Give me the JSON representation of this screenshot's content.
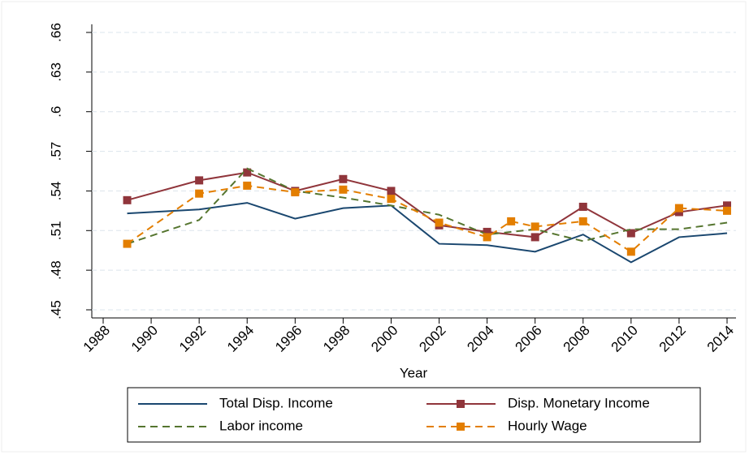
{
  "chart_data": {
    "type": "line",
    "x_label": "Year",
    "xlim": [
      1988,
      2014
    ],
    "xticks": [
      1988,
      1990,
      1992,
      1994,
      1996,
      1998,
      2000,
      2002,
      2004,
      2006,
      2008,
      2010,
      2012,
      2014
    ],
    "ylim": [
      0.45,
      0.66
    ],
    "yticks": [
      {
        "value": 0.45,
        "label": ".45"
      },
      {
        "value": 0.48,
        "label": ".48"
      },
      {
        "value": 0.51,
        "label": ".51"
      },
      {
        "value": 0.54,
        "label": ".54"
      },
      {
        "value": 0.57,
        "label": ".57"
      },
      {
        "value": 0.6,
        "label": ".6"
      },
      {
        "value": 0.63,
        "label": ".63"
      },
      {
        "value": 0.66,
        "label": ".66"
      }
    ],
    "grid": true,
    "legend": "bottom",
    "series": [
      {
        "name": "Total Disp. Income",
        "color": "#1a476f",
        "dash": "solid",
        "marker": "none",
        "x": [
          1989,
          1992,
          1994,
          1996,
          1998,
          2000,
          2002,
          2004,
          2006,
          2008,
          2010,
          2012,
          2014
        ],
        "values": [
          0.523,
          0.526,
          0.531,
          0.519,
          0.527,
          0.529,
          0.5,
          0.499,
          0.494,
          0.507,
          0.486,
          0.505,
          0.508
        ]
      },
      {
        "name": "Disp. Monetary Income",
        "color": "#90353b",
        "dash": "solid",
        "marker": "square",
        "x": [
          1989,
          1992,
          1994,
          1996,
          1998,
          2000,
          2002,
          2004,
          2006,
          2008,
          2010,
          2012,
          2014
        ],
        "values": [
          0.533,
          0.548,
          0.554,
          0.54,
          0.549,
          0.54,
          0.514,
          0.509,
          0.505,
          0.528,
          0.508,
          0.524,
          0.529
        ]
      },
      {
        "name": "Labor income",
        "color": "#55752f",
        "dash": "dashed",
        "marker": "none",
        "x": [
          1989,
          1992,
          1994,
          1996,
          1998,
          2000,
          2002,
          2004,
          2006,
          2008,
          2010,
          2012,
          2014
        ],
        "values": [
          0.5,
          0.518,
          0.557,
          0.54,
          0.535,
          0.529,
          0.522,
          0.507,
          0.511,
          0.502,
          0.511,
          0.511,
          0.516
        ]
      },
      {
        "name": "Hourly Wage",
        "color": "#e37e00",
        "dash": "dashed",
        "marker": "square",
        "x": [
          1989,
          1992,
          1994,
          1996,
          1998,
          2000,
          2002,
          2004,
          2005,
          2006,
          2008,
          2010,
          2012,
          2014
        ],
        "values": [
          0.5,
          0.538,
          0.544,
          0.539,
          0.541,
          0.534,
          0.516,
          0.505,
          0.517,
          0.513,
          0.517,
          0.494,
          0.527,
          0.525
        ]
      }
    ]
  }
}
